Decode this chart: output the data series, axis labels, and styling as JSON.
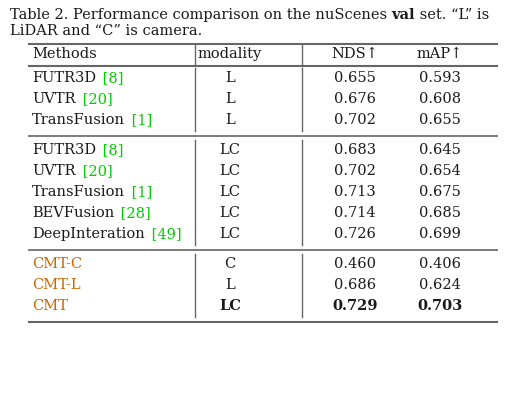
{
  "title_parts": [
    {
      "text": "Table 2. Performance comparison on the nuScenes ",
      "bold": false
    },
    {
      "text": "val",
      "bold": true
    },
    {
      "text": " set. “L” is",
      "bold": false
    }
  ],
  "title_line2": "LiDAR and “C” is camera.",
  "col_headers": [
    "Methods",
    "modality",
    "NDS↑",
    "mAP↑"
  ],
  "groups": [
    {
      "rows": [
        {
          "method": "FUTR3D",
          "ref": "[8]",
          "modality": "L",
          "nds": "0.655",
          "map": "0.593",
          "bold": false,
          "cmt": false
        },
        {
          "method": "UVTR",
          "ref": "[20]",
          "modality": "L",
          "nds": "0.676",
          "map": "0.608",
          "bold": false,
          "cmt": false
        },
        {
          "method": "TransFusion",
          "ref": "[1]",
          "modality": "L",
          "nds": "0.702",
          "map": "0.655",
          "bold": false,
          "cmt": false
        }
      ]
    },
    {
      "rows": [
        {
          "method": "FUTR3D",
          "ref": "[8]",
          "modality": "LC",
          "nds": "0.683",
          "map": "0.645",
          "bold": false,
          "cmt": false
        },
        {
          "method": "UVTR",
          "ref": "[20]",
          "modality": "LC",
          "nds": "0.702",
          "map": "0.654",
          "bold": false,
          "cmt": false
        },
        {
          "method": "TransFusion",
          "ref": "[1]",
          "modality": "LC",
          "nds": "0.713",
          "map": "0.675",
          "bold": false,
          "cmt": false
        },
        {
          "method": "BEVFusion",
          "ref": "[28]",
          "modality": "LC",
          "nds": "0.714",
          "map": "0.685",
          "bold": false,
          "cmt": false
        },
        {
          "method": "DeepInteration",
          "ref": "[49]",
          "modality": "LC",
          "nds": "0.726",
          "map": "0.699",
          "bold": false,
          "cmt": false
        }
      ]
    },
    {
      "rows": [
        {
          "method": "CMT-C",
          "ref": "",
          "modality": "C",
          "nds": "0.460",
          "map": "0.406",
          "bold": false,
          "cmt": true
        },
        {
          "method": "CMT-L",
          "ref": "",
          "modality": "L",
          "nds": "0.686",
          "map": "0.624",
          "bold": false,
          "cmt": true
        },
        {
          "method": "CMT",
          "ref": "",
          "modality": "LC",
          "nds": "0.729",
          "map": "0.703",
          "bold": true,
          "cmt": true
        }
      ]
    }
  ],
  "text_color": "#1a1a1a",
  "ref_color": "#00cc00",
  "cmt_color": "#cc6600",
  "bg_color": "#ffffff",
  "title_fontsize": 10.5,
  "body_fontsize": 10.5,
  "line_color": "#666666",
  "fig_width": 5.12,
  "fig_height": 4.12,
  "dpi": 100
}
